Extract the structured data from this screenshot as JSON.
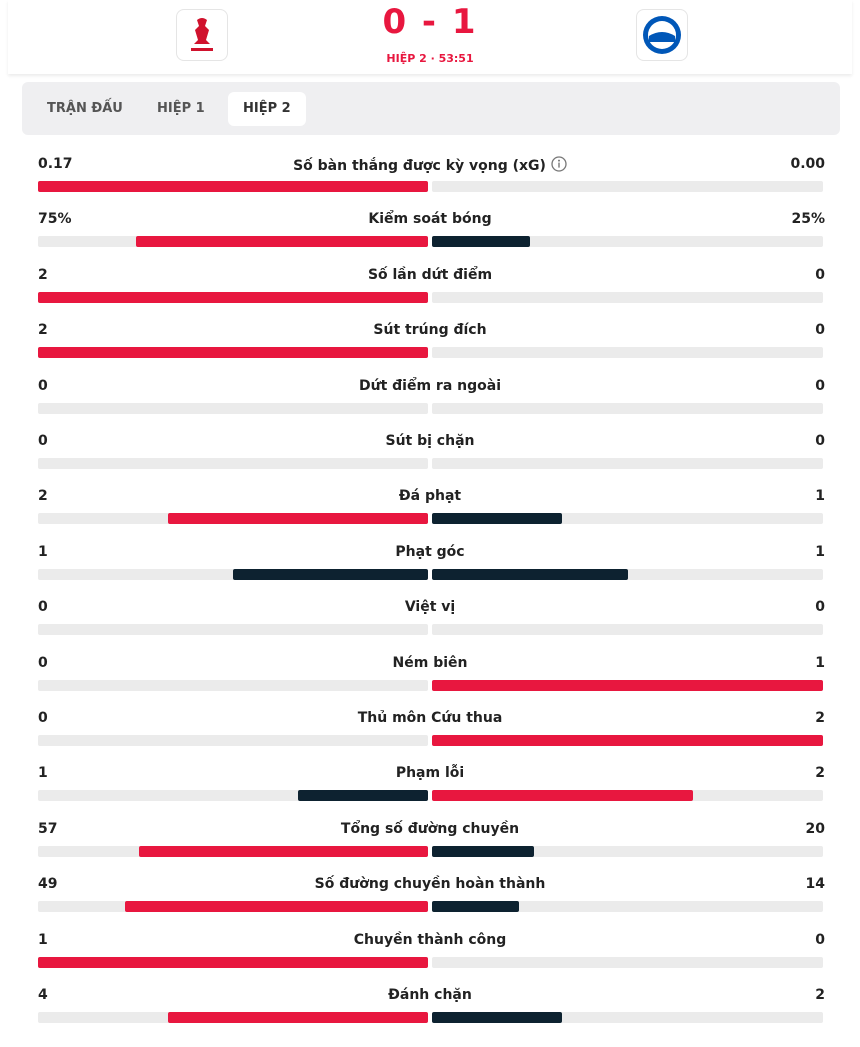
{
  "header": {
    "score": "0 - 1",
    "period": "HIỆP 2 · 53:51"
  },
  "tabs": {
    "items": [
      "TRẬN ĐẤU",
      "HIỆP 1",
      "HIỆP 2"
    ],
    "active": 2
  },
  "stats": [
    {
      "name": "Số bàn thắng được kỳ vọng (xG)",
      "home": 0.17,
      "away": 0,
      "away_label": "0.00",
      "info": true
    },
    {
      "name": "Kiểm soát bóng",
      "home": 75,
      "home_label": "75%",
      "away": 25,
      "away_label": "25%"
    },
    {
      "name": "Số lần dứt điểm",
      "home": 2,
      "away": 0
    },
    {
      "name": "Sút trúng đích",
      "home": 2,
      "away": 0
    },
    {
      "name": "Dứt điểm ra ngoài",
      "home": 0,
      "away": 0
    },
    {
      "name": "Sút bị chặn",
      "home": 0,
      "away": 0
    },
    {
      "name": "Đá phạt",
      "home": 2,
      "away": 1
    },
    {
      "name": "Phạt góc",
      "home": 1,
      "away": 1
    },
    {
      "name": "Việt vị",
      "home": 0,
      "away": 0
    },
    {
      "name": "Ném biên",
      "home": 0,
      "away": 1
    },
    {
      "name": "Thủ môn Cứu thua",
      "home": 0,
      "away": 2
    },
    {
      "name": "Phạm lỗi",
      "home": 1,
      "away": 2
    },
    {
      "name": "Tổng số đường chuyền",
      "home": 57,
      "away": 20
    },
    {
      "name": "Số đường chuyền hoàn thành",
      "home": 49,
      "away": 14
    },
    {
      "name": "Chuyền thành công",
      "home": 1,
      "away": 0
    },
    {
      "name": "Đánh chặn",
      "home": 4,
      "away": 2
    }
  ]
}
